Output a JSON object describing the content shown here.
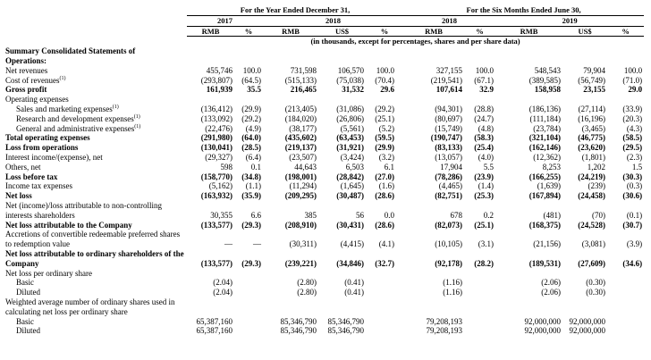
{
  "header": {
    "periods": [
      "For the Year Ended December 31,",
      "For the Six Months Ended June 30,"
    ],
    "years": [
      "2017",
      "2018",
      "2018",
      "2019"
    ],
    "units": [
      "RMB",
      "%",
      "RMB",
      "US$",
      "%",
      "RMB",
      "%",
      "RMB",
      "US$",
      "%"
    ],
    "note": "(in thousands, except for percentages, shares and per share data)"
  },
  "table": {
    "rows": [
      {
        "label": "Summary Consolidated Statements of Operations:",
        "bold": true,
        "indent": 0,
        "cells": [
          null,
          null,
          null,
          null,
          null,
          null,
          null,
          null,
          null,
          null
        ]
      },
      {
        "label": "Net revenues",
        "bold": false,
        "indent": 0,
        "cells": [
          "455,746",
          "100.0",
          "731,598",
          "106,570",
          "100.0",
          "327,155",
          "100.0",
          "548,543",
          "79,904",
          "100.0"
        ]
      },
      {
        "label": "Cost of revenues",
        "note": "(1)",
        "bold": false,
        "indent": 0,
        "cells": [
          "(293,807)",
          "(64.5)",
          "(515,133)",
          "(75,038)",
          "(70.4)",
          "(219,541)",
          "(67.1)",
          "(389,585)",
          "(56,749)",
          "(71.0)"
        ]
      },
      {
        "label": "Gross profit",
        "bold": true,
        "indent": 0,
        "cells": [
          "161,939",
          "35.5",
          "216,465",
          "31,532",
          "29.6",
          "107,614",
          "32.9",
          "158,958",
          "23,155",
          "29.0"
        ]
      },
      {
        "label": "Operating expenses",
        "bold": false,
        "indent": 0,
        "cells": [
          null,
          null,
          null,
          null,
          null,
          null,
          null,
          null,
          null,
          null
        ]
      },
      {
        "label": "Sales and marketing expenses",
        "note": "(1)",
        "bold": false,
        "indent": 1,
        "cells": [
          "(136,412)",
          "(29.9)",
          "(213,405)",
          "(31,086)",
          "(29.2)",
          "(94,301)",
          "(28.8)",
          "(186,136)",
          "(27,114)",
          "(33.9)"
        ]
      },
      {
        "label": "Research and development expenses",
        "note": "(1)",
        "bold": false,
        "indent": 1,
        "cells": [
          "(133,092)",
          "(29.2)",
          "(184,020)",
          "(26,806)",
          "(25.1)",
          "(80,697)",
          "(24.7)",
          "(111,184)",
          "(16,196)",
          "(20.3)"
        ]
      },
      {
        "label": "General and administrative expenses",
        "note": "(1)",
        "bold": false,
        "indent": 1,
        "cells": [
          "(22,476)",
          "(4.9)",
          "(38,177)",
          "(5,561)",
          "(5.2)",
          "(15,749)",
          "(4.8)",
          "(23,784)",
          "(3,465)",
          "(4.3)"
        ]
      },
      {
        "label": "Total operating expenses",
        "bold": true,
        "indent": 0,
        "cells": [
          "(291,980)",
          "(64.0)",
          "(435,602)",
          "(63,453)",
          "(59.5)",
          "(190,747)",
          "(58.3)",
          "(321,104)",
          "(46,775)",
          "(58.5)"
        ]
      },
      {
        "label": "Loss from operations",
        "bold": true,
        "indent": 0,
        "cells": [
          "(130,041)",
          "(28.5)",
          "(219,137)",
          "(31,921)",
          "(29.9)",
          "(83,133)",
          "(25.4)",
          "(162,146)",
          "(23,620)",
          "(29.5)"
        ]
      },
      {
        "label": "Interest income/(expense), net",
        "bold": false,
        "indent": 0,
        "cells": [
          "(29,327)",
          "(6.4)",
          "(23,507)",
          "(3,424)",
          "(3.2)",
          "(13,057)",
          "(4.0)",
          "(12,362)",
          "(1,801)",
          "(2.3)"
        ]
      },
      {
        "label": "Others, net",
        "bold": false,
        "indent": 0,
        "cells": [
          "598",
          "0.1",
          "44,643",
          "6,503",
          "6.1",
          "17,904",
          "5.5",
          "8,253",
          "1,202",
          "1.5"
        ]
      },
      {
        "label": "Loss before tax",
        "bold": true,
        "indent": 0,
        "cells": [
          "(158,770)",
          "(34.8)",
          "(198,001)",
          "(28,842)",
          "(27.0)",
          "(78,286)",
          "(23.9)",
          "(166,255)",
          "(24,219)",
          "(30.3)"
        ]
      },
      {
        "label": "Income tax expenses",
        "bold": false,
        "indent": 0,
        "cells": [
          "(5,162)",
          "(1.1)",
          "(11,294)",
          "(1,645)",
          "(1.6)",
          "(4,465)",
          "(1.4)",
          "(1,639)",
          "(239)",
          "(0.3)"
        ]
      },
      {
        "label": "Net loss",
        "bold": true,
        "indent": 0,
        "cells": [
          "(163,932)",
          "(35.9)",
          "(209,295)",
          "(30,487)",
          "(28.6)",
          "(82,751)",
          "(25.3)",
          "(167,894)",
          "(24,458)",
          "(30.6)"
        ]
      },
      {
        "label": "Net (income)/loss attributable to non-controlling interests shareholders",
        "bold": false,
        "indent": 0,
        "cells": [
          "30,355",
          "6.6",
          "385",
          "56",
          "0.0",
          "678",
          "0.2",
          "(481)",
          "(70)",
          "(0.1)"
        ]
      },
      {
        "label": "Net loss attributable to the Company",
        "bold": true,
        "indent": 0,
        "cells": [
          "(133,577)",
          "(29.3)",
          "(208,910)",
          "(30,431)",
          "(28.6)",
          "(82,073)",
          "(25.1)",
          "(168,375)",
          "(24,528)",
          "(30.7)"
        ]
      },
      {
        "label": "Accretions of convertible redeemable preferred shares to redemption value",
        "bold": false,
        "indent": 0,
        "cells": [
          "—",
          "—",
          "(30,311)",
          "(4,415)",
          "(4.1)",
          "(10,105)",
          "(3.1)",
          "(21,156)",
          "(3,081)",
          "(3.9)"
        ]
      },
      {
        "label": "Net loss attributable to ordinary shareholders of the Company",
        "bold": true,
        "indent": 0,
        "cells": [
          "(133,577)",
          "(29.3)",
          "(239,221)",
          "(34,846)",
          "(32.7)",
          "(92,178)",
          "(28.2)",
          "(189,531)",
          "(27,609)",
          "(34.6)"
        ]
      },
      {
        "label": "Net loss per ordinary share",
        "bold": false,
        "indent": 0,
        "cells": [
          null,
          null,
          null,
          null,
          null,
          null,
          null,
          null,
          null,
          null
        ]
      },
      {
        "label": "Basic",
        "bold": false,
        "indent": 1,
        "cells": [
          "(2.04)",
          null,
          "(2.80)",
          "(0.41)",
          null,
          "(1.16)",
          null,
          "(2.06)",
          "(0.30)",
          null
        ]
      },
      {
        "label": "Diluted",
        "bold": false,
        "indent": 1,
        "cells": [
          "(2.04)",
          null,
          "(2.80)",
          "(0.41)",
          null,
          "(1.16)",
          null,
          "(2.06)",
          "(0.30)",
          null
        ]
      },
      {
        "label": "Weighted average number of ordinary shares used in calculating net loss per ordinary share",
        "bold": false,
        "indent": 0,
        "cells": [
          null,
          null,
          null,
          null,
          null,
          null,
          null,
          null,
          null,
          null
        ]
      },
      {
        "label": "Basic",
        "bold": false,
        "indent": 1,
        "cells": [
          "65,387,160",
          null,
          "85,346,790",
          "85,346,790",
          null,
          "79,208,193",
          null,
          "92,000,000",
          "92,000,000",
          null
        ]
      },
      {
        "label": "Diluted",
        "bold": false,
        "indent": 1,
        "cells": [
          "65,387,160",
          null,
          "85,346,790",
          "85,346,790",
          null,
          "79,208,193",
          null,
          "92,000,000",
          "92,000,000",
          null
        ]
      }
    ]
  }
}
